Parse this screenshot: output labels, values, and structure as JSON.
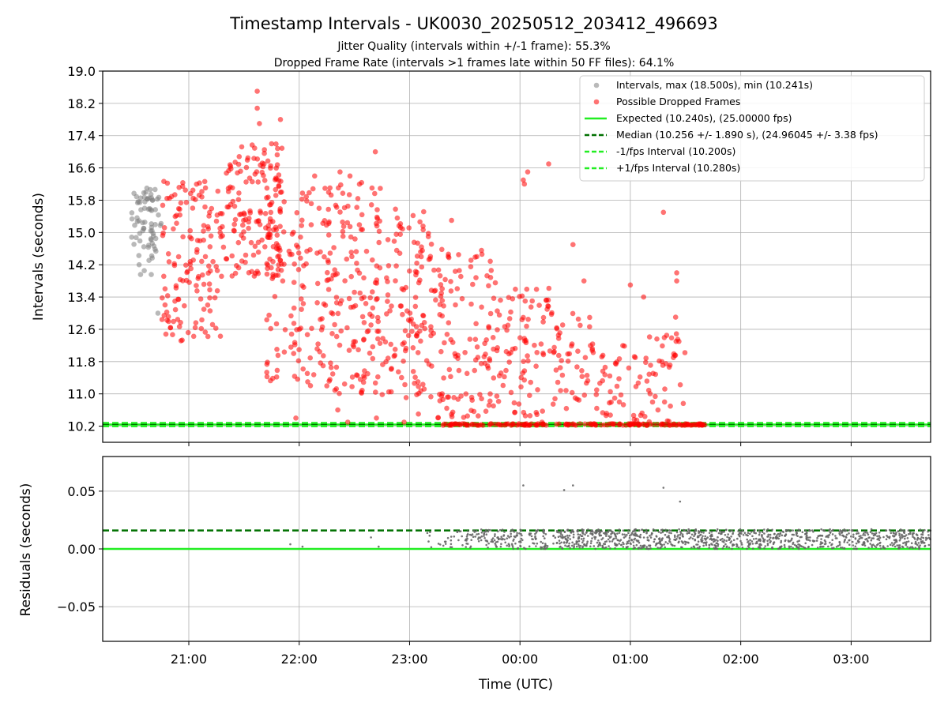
{
  "chart_data": {
    "type": "scatter",
    "title": "Timestamp Intervals - UK0030_20250512_203412_496693",
    "subtitle_lines": [
      "Jitter Quality (intervals within +/-1 frame): 55.3%",
      "Dropped Frame Rate (intervals >1 frames late within 50 FF files): 64.1%"
    ],
    "xlabel": "Time (UTC)",
    "x_tick_labels": [
      "21:00",
      "22:00",
      "23:00",
      "00:00",
      "01:00",
      "02:00",
      "03:00"
    ],
    "x_tick_hours": [
      21,
      22,
      23,
      24,
      25,
      26,
      27
    ],
    "x_range_hours": [
      20.22,
      27.72
    ],
    "grid": true,
    "legend_position": "top-right",
    "panels": [
      {
        "name": "intervals",
        "ylabel": "Intervals (seconds)",
        "ylim": [
          9.8,
          19.0
        ],
        "y_ticks": [
          10.2,
          11.0,
          11.8,
          12.6,
          13.4,
          14.2,
          15.0,
          15.8,
          16.6,
          17.4,
          18.2,
          19.0
        ],
        "y_tick_labels": [
          "10.2",
          "11.0",
          "11.8",
          "12.6",
          "13.4",
          "14.2",
          "15.0",
          "15.8",
          "16.6",
          "17.4",
          "18.2",
          "19.0"
        ],
        "legend": [
          {
            "label": "Intervals, max (18.500s), min (10.241s)",
            "kind": "marker",
            "color": "#808080"
          },
          {
            "label": "Possible Dropped Frames",
            "kind": "marker",
            "color": "#ff0000"
          },
          {
            "label": "Expected (10.240s), (25.00000 fps)",
            "kind": "solid",
            "color": "#22ee22"
          },
          {
            "label": "Median (10.256 +/- 1.890 s), (24.96045 +/- 3.38 fps)",
            "kind": "dash",
            "color": "#007000"
          },
          {
            "label": "-1/fps Interval (10.200s)",
            "kind": "dash",
            "color": "#22ee22"
          },
          {
            "label": "+1/fps Interval (10.280s)",
            "kind": "dash",
            "color": "#22ee22"
          }
        ],
        "reference_lines": [
          {
            "y": 10.24,
            "color": "#22ee22",
            "style": "solid"
          },
          {
            "y": 10.256,
            "color": "#007000",
            "style": "dash"
          },
          {
            "y": 10.2,
            "color": "#22ee22",
            "style": "dash"
          },
          {
            "y": 10.28,
            "color": "#22ee22",
            "style": "dash"
          }
        ],
        "series": [
          {
            "name": "Intervals, max (18.500s), min (10.241s)",
            "color": "#808080",
            "generated_range": {
              "x_hours": [
                20.48,
                20.75
              ],
              "y": [
                13.0,
                16.1
              ],
              "count": 70
            },
            "points": [
              [
                20.62,
                16.1
              ],
              [
                20.72,
                13.0
              ],
              [
                20.55,
                14.2
              ],
              [
                20.6,
                15.6
              ]
            ]
          },
          {
            "name": "Possible Dropped Frames",
            "color": "#ff0000",
            "points": [
              [
                21.62,
                18.5
              ],
              [
                21.62,
                18.08
              ],
              [
                21.64,
                17.7
              ],
              [
                21.83,
                17.8
              ],
              [
                21.75,
                17.2
              ],
              [
                22.14,
                16.4
              ],
              [
                22.46,
                16.4
              ],
              [
                22.37,
                16.5
              ],
              [
                22.69,
                17.0
              ],
              [
                22.18,
                15.6
              ],
              [
                23.38,
                15.3
              ],
              [
                24.03,
                16.3
              ],
              [
                24.07,
                16.5
              ],
              [
                24.04,
                16.2
              ],
              [
                24.26,
                16.7
              ],
              [
                24.48,
                14.7
              ],
              [
                24.58,
                13.8
              ],
              [
                25.0,
                13.7
              ],
              [
                25.12,
                13.4
              ],
              [
                25.3,
                15.5
              ],
              [
                25.42,
                14.0
              ],
              [
                25.42,
                13.8
              ],
              [
                25.41,
                12.9
              ],
              [
                25.44,
                12.3
              ],
              [
                25.39,
                11.9
              ],
              [
                21.97,
                10.4
              ],
              [
                22.35,
                10.6
              ],
              [
                22.44,
                10.3
              ],
              [
                22.7,
                10.4
              ],
              [
                22.95,
                10.3
              ],
              [
                23.08,
                10.5
              ],
              [
                24.2,
                10.3
              ],
              [
                23.73,
                11.0
              ],
              [
                24.5,
                10.9
              ],
              [
                24.9,
                10.8
              ],
              [
                25.25,
                10.6
              ],
              [
                25.31,
                10.8
              ],
              [
                21.95,
                12.0
              ],
              [
                22.25,
                11.2
              ],
              [
                22.62,
                11.5
              ]
            ],
            "generated_cloud": [
              {
                "x_hours": [
                  20.75,
                  21.3
                ],
                "y": [
                  12.3,
                  16.3
                ],
                "count": 140
              },
              {
                "x_hours": [
                  21.3,
                  21.85
                ],
                "y": [
                  13.9,
                  17.2
                ],
                "count": 150
              },
              {
                "x_hours": [
                  21.7,
                  22.25
                ],
                "y": [
                  11.2,
                  16.3
                ],
                "count": 120
              },
              {
                "x_hours": [
                  22.25,
                  22.75
                ],
                "y": [
                  11.0,
                  16.4
                ],
                "count": 150
              },
              {
                "x_hours": [
                  22.75,
                  23.2
                ],
                "y": [
                  10.9,
                  15.6
                ],
                "count": 120
              },
              {
                "x_hours": [
                  23.2,
                  23.75
                ],
                "y": [
                  10.4,
                  14.6
                ],
                "count": 110
              },
              {
                "x_hours": [
                  23.75,
                  24.3
                ],
                "y": [
                  10.4,
                  13.8
                ],
                "count": 90
              },
              {
                "x_hours": [
                  24.3,
                  24.7
                ],
                "y": [
                  10.4,
                  13.0
                ],
                "count": 50
              },
              {
                "x_hours": [
                  24.7,
                  25.15
                ],
                "y": [
                  10.3,
                  12.2
                ],
                "count": 40
              },
              {
                "x_hours": [
                  25.15,
                  25.5
                ],
                "y": [
                  10.3,
                  12.5
                ],
                "count": 35
              }
            ],
            "dense_band": {
              "y": 10.24,
              "segments_hours": [
                [
                  23.3,
                  24.25
                ],
                [
                  24.32,
                  25.68
                ]
              ],
              "count": 170
            }
          }
        ]
      },
      {
        "name": "residuals",
        "ylabel": "Residuals (seconds)",
        "ylim": [
          -0.08,
          0.08
        ],
        "y_ticks": [
          -0.05,
          0.0,
          0.05
        ],
        "y_tick_labels": [
          "−0.05",
          "0.00",
          "0.05"
        ],
        "reference_lines": [
          {
            "y": 0.0,
            "color": "#22ee22",
            "style": "solid"
          },
          {
            "y": 0.016,
            "color": "#007000",
            "style": "dash"
          }
        ],
        "series": [
          {
            "name": "Residuals",
            "color": "#666666",
            "points": [
              [
                24.03,
                0.055
              ],
              [
                24.48,
                0.055
              ],
              [
                24.4,
                0.051
              ],
              [
                25.3,
                0.053
              ],
              [
                25.45,
                0.041
              ],
              [
                21.92,
                0.004
              ],
              [
                22.03,
                0.002
              ],
              [
                22.65,
                0.01
              ],
              [
                22.72,
                0.002
              ]
            ],
            "generated_cloud": [
              {
                "x_hours": [
                  23.15,
                  23.5
                ],
                "y": [
                  0.0,
                  0.017
                ],
                "count": 25
              },
              {
                "x_hours": [
                  23.5,
                  24.25
                ],
                "y": [
                  0.0,
                  0.017
                ],
                "count": 170
              },
              {
                "x_hours": [
                  24.3,
                  25.72
                ],
                "y": [
                  0.0,
                  0.017
                ],
                "count": 460
              },
              {
                "x_hours": [
                  25.72,
                  27.72
                ],
                "y": [
                  0.0,
                  0.017
                ],
                "count": 580
              }
            ]
          }
        ]
      }
    ]
  }
}
